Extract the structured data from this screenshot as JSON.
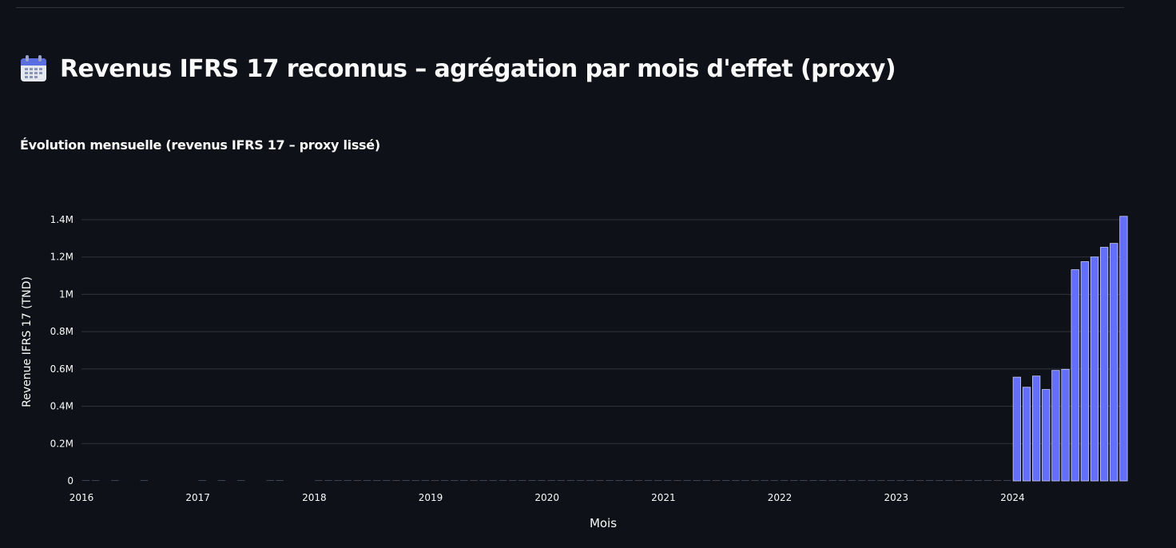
{
  "header": {
    "title": "Revenus IFRS 17 reconnus – agrégation par mois d'effet (proxy)",
    "icon": "calendar-icon"
  },
  "section": {
    "subtitle": "Évolution mensuelle (revenus IFRS 17 – proxy lissé)"
  },
  "colors": {
    "background": "#0e1117",
    "bar": "#636efa",
    "bar_outline": "#c9ccff",
    "grid": "#31333f",
    "text": "#fafafa"
  },
  "chart_data": {
    "type": "bar",
    "xlabel": "Mois",
    "ylabel": "Revenue IFRS 17 (TND)",
    "ylim": [
      0,
      1450000
    ],
    "xlim": [
      "2016-01",
      "2024-12"
    ],
    "y_ticks": [
      {
        "value": 0,
        "label": "0"
      },
      {
        "value": 200000,
        "label": "0.2M"
      },
      {
        "value": 400000,
        "label": "0.4M"
      },
      {
        "value": 600000,
        "label": "0.6M"
      },
      {
        "value": 800000,
        "label": "0.8M"
      },
      {
        "value": 1000000,
        "label": "1M"
      },
      {
        "value": 1200000,
        "label": "1.2M"
      },
      {
        "value": 1400000,
        "label": "1.4M"
      }
    ],
    "x_ticks": [
      {
        "value": "2016-01",
        "label": "2016"
      },
      {
        "value": "2017-01",
        "label": "2017"
      },
      {
        "value": "2018-01",
        "label": "2018"
      },
      {
        "value": "2019-01",
        "label": "2019"
      },
      {
        "value": "2020-01",
        "label": "2020"
      },
      {
        "value": "2021-01",
        "label": "2021"
      },
      {
        "value": "2022-01",
        "label": "2022"
      },
      {
        "value": "2023-01",
        "label": "2023"
      },
      {
        "value": "2024-01",
        "label": "2024"
      }
    ],
    "grid": true,
    "legend": "none",
    "series": [
      {
        "x": [
          "2016-01",
          "2016-02",
          "2016-04",
          "2016-07",
          "2017-01",
          "2017-03",
          "2017-05",
          "2017-08",
          "2017-09",
          "2018-01",
          "2018-02",
          "2018-03",
          "2018-04",
          "2018-05",
          "2018-06",
          "2018-07",
          "2018-08",
          "2018-09",
          "2018-10",
          "2018-11",
          "2018-12",
          "2019-01",
          "2019-02",
          "2019-03",
          "2019-04",
          "2019-05",
          "2019-06",
          "2019-07",
          "2019-08",
          "2019-09",
          "2019-10",
          "2019-11",
          "2019-12",
          "2020-01",
          "2020-02",
          "2020-03",
          "2020-04",
          "2020-05",
          "2020-06",
          "2020-07",
          "2020-08",
          "2020-09",
          "2020-10",
          "2020-11",
          "2020-12",
          "2021-01",
          "2021-02",
          "2021-03",
          "2021-04",
          "2021-05",
          "2021-06",
          "2021-07",
          "2021-08",
          "2021-09",
          "2021-10",
          "2021-11",
          "2021-12",
          "2022-01",
          "2022-02",
          "2022-03",
          "2022-04",
          "2022-05",
          "2022-06",
          "2022-07",
          "2022-08",
          "2022-09",
          "2022-10",
          "2022-11",
          "2022-12",
          "2023-01",
          "2023-02",
          "2023-03",
          "2023-04",
          "2023-05",
          "2023-06",
          "2023-07",
          "2023-08",
          "2023-09",
          "2023-10",
          "2023-11",
          "2023-12",
          "2024-01",
          "2024-02",
          "2024-03",
          "2024-04",
          "2024-05",
          "2024-06",
          "2024-07",
          "2024-08",
          "2024-09",
          "2024-10",
          "2024-11",
          "2024-12"
        ],
        "values": [
          1000,
          800,
          900,
          700,
          1000,
          900,
          800,
          1000,
          900,
          1200,
          1000,
          1100,
          900,
          1000,
          1200,
          900,
          1000,
          1100,
          1000,
          900,
          1000,
          1000,
          1100,
          900,
          1000,
          1000,
          1100,
          900,
          1000,
          1000,
          1200,
          1000,
          900,
          1000,
          1100,
          900,
          1000,
          1100,
          1000,
          900,
          1000,
          1000,
          1100,
          1000,
          900,
          1000,
          1000,
          1100,
          900,
          1000,
          1000,
          1100,
          1000,
          900,
          1000,
          1000,
          1100,
          1000,
          900,
          1000,
          1100,
          1000,
          1000,
          900,
          1000,
          1100,
          1000,
          1000,
          900,
          1000,
          1100,
          1000,
          1200,
          1500,
          1800,
          1400,
          1300,
          1200,
          1500,
          1400,
          1300,
          556000,
          502000,
          562000,
          490000,
          592000,
          598000,
          1132000,
          1175000,
          1200000,
          1252000,
          1273000,
          1418000
        ]
      }
    ]
  }
}
